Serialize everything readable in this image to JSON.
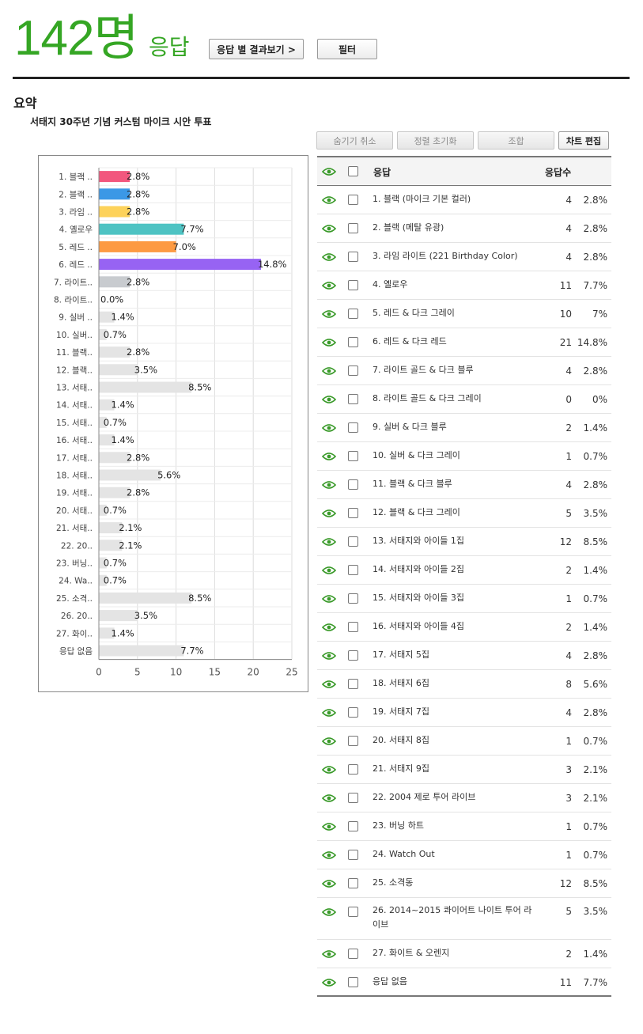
{
  "header": {
    "count": "142명",
    "count_label": "응답",
    "by_response_button": "응답 별 결과보기 >",
    "filter_button": "필터"
  },
  "summary": {
    "title": "요약",
    "question": "서태지 30주년 기념 커스텀 마이크 시안 투표"
  },
  "toolbar": {
    "unhide": "숨기기 취소",
    "reset_sort": "정렬 초기화",
    "combine": "조합",
    "edit_chart": "차트 편집"
  },
  "table": {
    "col_response": "응답",
    "col_count": "응답수",
    "rows": [
      {
        "label": "1. 블랙 (마이크 기본 컬러)",
        "count": "4",
        "pct": "2.8%"
      },
      {
        "label": "2. 블랙 (메탈 유광)",
        "count": "4",
        "pct": "2.8%"
      },
      {
        "label": "3. 라임 라이트 (221 Birthday Color)",
        "count": "4",
        "pct": "2.8%"
      },
      {
        "label": "4. 옐로우",
        "count": "11",
        "pct": "7.7%"
      },
      {
        "label": "5. 레드 & 다크 그레이",
        "count": "10",
        "pct": "7%"
      },
      {
        "label": "6. 레드 & 다크 레드",
        "count": "21",
        "pct": "14.8%"
      },
      {
        "label": "7. 라이트 골드 & 다크 블루",
        "count": "4",
        "pct": "2.8%"
      },
      {
        "label": "8. 라이트 골드 & 다크 그레이",
        "count": "0",
        "pct": "0%"
      },
      {
        "label": "9. 실버 & 다크 블루",
        "count": "2",
        "pct": "1.4%"
      },
      {
        "label": "10. 실버 & 다크 그레이",
        "count": "1",
        "pct": "0.7%"
      },
      {
        "label": "11. 블랙 & 다크 블루",
        "count": "4",
        "pct": "2.8%"
      },
      {
        "label": "12. 블랙 & 다크 그레이",
        "count": "5",
        "pct": "3.5%"
      },
      {
        "label": "13. 서태지와 아이들 1집",
        "count": "12",
        "pct": "8.5%"
      },
      {
        "label": "14. 서태지와 아이들 2집",
        "count": "2",
        "pct": "1.4%"
      },
      {
        "label": "15. 서태지와 아이들 3집",
        "count": "1",
        "pct": "0.7%"
      },
      {
        "label": "16. 서태지와 아이들 4집",
        "count": "2",
        "pct": "1.4%"
      },
      {
        "label": "17. 서태지 5집",
        "count": "4",
        "pct": "2.8%"
      },
      {
        "label": "18. 서태지 6집",
        "count": "8",
        "pct": "5.6%"
      },
      {
        "label": "19. 서태지 7집",
        "count": "4",
        "pct": "2.8%"
      },
      {
        "label": "20. 서태지 8집",
        "count": "1",
        "pct": "0.7%"
      },
      {
        "label": "21. 서태지 9집",
        "count": "3",
        "pct": "2.1%"
      },
      {
        "label": "22. 2004 제로 투어 라이브",
        "count": "3",
        "pct": "2.1%"
      },
      {
        "label": "23. 버닝 하트",
        "count": "1",
        "pct": "0.7%"
      },
      {
        "label": "24. Watch Out",
        "count": "1",
        "pct": "0.7%"
      },
      {
        "label": "25. 소격동",
        "count": "12",
        "pct": "8.5%"
      },
      {
        "label": "26. 2014~2015 콰이어트 나이트 투어 라이브",
        "count": "5",
        "pct": "3.5%"
      },
      {
        "label": "27. 화이트 & 오렌지",
        "count": "2",
        "pct": "1.4%"
      },
      {
        "label": "응답 없음",
        "count": "11",
        "pct": "7.7%"
      }
    ]
  },
  "chart_data": {
    "type": "bar",
    "orientation": "horizontal",
    "categories": [
      "1. 블랙 ..",
      "2. 블랙 ..",
      "3. 라임 ..",
      "4. 옐로우",
      "5. 레드 ..",
      "6. 레드 ..",
      "7. 라이트..",
      "8. 라이트..",
      "9. 실버 ..",
      "10. 실버..",
      "11. 블랙..",
      "12. 블랙..",
      "13. 서태..",
      "14. 서태..",
      "15. 서태..",
      "16. 서태..",
      "17. 서태..",
      "18. 서태..",
      "19. 서태..",
      "20. 서태..",
      "21. 서태..",
      "22. 20..",
      "23. 버닝..",
      "24. Wa..",
      "25. 소격..",
      "26. 20..",
      "27. 화이..",
      "응답 없음"
    ],
    "values": [
      4,
      4,
      4,
      11,
      10,
      21,
      4,
      0,
      2,
      1,
      4,
      5,
      12,
      2,
      1,
      2,
      4,
      8,
      4,
      1,
      3,
      3,
      1,
      1,
      12,
      5,
      2,
      11
    ],
    "data_labels": [
      "2.8%",
      "2.8%",
      "2.8%",
      "7.7%",
      "7.0%",
      "14.8%",
      "2.8%",
      "0.0%",
      "1.4%",
      "0.7%",
      "2.8%",
      "3.5%",
      "8.5%",
      "1.4%",
      "0.7%",
      "1.4%",
      "2.8%",
      "5.6%",
      "2.8%",
      "0.7%",
      "2.1%",
      "2.1%",
      "0.7%",
      "0.7%",
      "8.5%",
      "3.5%",
      "1.4%",
      "7.7%"
    ],
    "colors": [
      "#f2577e",
      "#3b98e6",
      "#fdd25a",
      "#4ec3c3",
      "#fd9a42",
      "#9763f3",
      "#c8cbcf",
      "#e4e4e4",
      "#e4e4e4",
      "#e4e4e4",
      "#e4e4e4",
      "#e4e4e4",
      "#e4e4e4",
      "#e4e4e4",
      "#e4e4e4",
      "#e4e4e4",
      "#e4e4e4",
      "#e4e4e4",
      "#e4e4e4",
      "#e4e4e4",
      "#e4e4e4",
      "#e4e4e4",
      "#e4e4e4",
      "#e4e4e4",
      "#e4e4e4",
      "#e4e4e4",
      "#e4e4e4",
      "#e4e4e4"
    ],
    "xlim": [
      0,
      25
    ],
    "xticks": [
      "0",
      "5",
      "10",
      "15",
      "20",
      "25"
    ],
    "title": "",
    "xlabel": "",
    "ylabel": "",
    "grid": true
  },
  "colors": {
    "accent_green": "#35a624",
    "eye_icon": "#3a9a2a"
  },
  "icons": {
    "eye": "eye-icon",
    "checkbox": "checkbox-icon"
  }
}
